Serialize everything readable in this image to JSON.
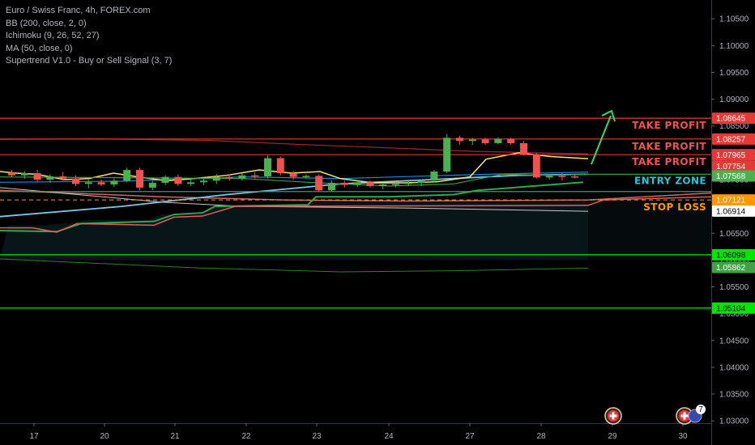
{
  "legend": {
    "symbol": "Euro / Swiss Franc, 4h, FOREX.com",
    "ind1": "BB (200, close, 2, 0)",
    "ind2": "Ichimoku (9, 26, 52, 27)",
    "ind3": "MA (50, close, 0)",
    "ind4": "Supertrend V1.0 - Buy or Sell Signal (3, 7)"
  },
  "price_labels": [
    {
      "price": 1.08645,
      "text": "1.08645",
      "bg": "#e53935",
      "fg": "#ffffff"
    },
    {
      "price": 1.08257,
      "text": "1.08257",
      "bg": "#e53935",
      "fg": "#ffffff"
    },
    {
      "price": 1.07965,
      "text": "1.07965",
      "bg": "#e53935",
      "fg": "#ffffff"
    },
    {
      "price": 1.07754,
      "text": "1.07754",
      "bg": "#e53935",
      "fg": "#ffffff"
    },
    {
      "price": 1.07568,
      "text": "1.07568",
      "bg": "#4caf50",
      "fg": "#ffffff"
    },
    {
      "price": 1.07121,
      "text": "1.07121",
      "bg": "#ff9800",
      "fg": "#ffffff"
    },
    {
      "price": 1.06914,
      "text": "1.06914",
      "bg": "#ffffff",
      "fg": "#000000"
    },
    {
      "price": 1.06098,
      "text": "1.06098",
      "bg": "#00e600",
      "fg": "#000000"
    },
    {
      "price": 1.05862,
      "text": "1.05862",
      "bg": "#43a047",
      "fg": "#ffffff"
    },
    {
      "price": 1.05104,
      "text": "1.05104",
      "bg": "#00e600",
      "fg": "#000000"
    }
  ],
  "annotations": {
    "tp1": "TAKE PROFIT",
    "tp2": "TAKE PROFIT",
    "tp3": "TAKE PROFIT",
    "entry": "ENTRY ZONE",
    "stop": "STOP LOSS",
    "badge_count": "7"
  },
  "colors": {
    "take_profit": "#e53935",
    "entry": "#26a69a",
    "stop": "#ff9800",
    "bull": "#4caf50",
    "bear": "#ef5350",
    "support": "#00e600"
  },
  "chart_data": {
    "type": "candlestick",
    "symbol": "EURCHF",
    "timeframe": "4h",
    "ylim": [
      1.0255,
      1.1085
    ],
    "yticks": [
      1.105,
      1.1,
      1.095,
      1.09,
      1.085,
      1.08,
      1.075,
      1.07,
      1.065,
      1.06,
      1.055,
      1.05,
      1.045,
      1.04,
      1.035,
      1.03,
      1.025
    ],
    "xticks": [
      "17",
      "20",
      "21",
      "22",
      "23",
      "24",
      "27",
      "28",
      "29",
      "30"
    ],
    "horizontal_levels": [
      {
        "price": 1.08645,
        "role": "take profit"
      },
      {
        "price": 1.08257,
        "role": "take profit"
      },
      {
        "price": 1.07965,
        "role": "take profit"
      },
      {
        "price": 1.07121,
        "role": "stop loss"
      },
      {
        "price": 1.06098,
        "role": "support"
      },
      {
        "price": 1.05104,
        "role": "support"
      }
    ],
    "candles": [
      {
        "o": 1.0763,
        "h": 1.0768,
        "l": 1.0755,
        "c": 1.0758
      },
      {
        "o": 1.0758,
        "h": 1.0766,
        "l": 1.0752,
        "c": 1.0762
      },
      {
        "o": 1.0762,
        "h": 1.0768,
        "l": 1.0745,
        "c": 1.075
      },
      {
        "o": 1.075,
        "h": 1.076,
        "l": 1.0744,
        "c": 1.0756
      },
      {
        "o": 1.0756,
        "h": 1.0764,
        "l": 1.0748,
        "c": 1.0752
      },
      {
        "o": 1.0752,
        "h": 1.0758,
        "l": 1.0738,
        "c": 1.0742
      },
      {
        "o": 1.0742,
        "h": 1.075,
        "l": 1.0734,
        "c": 1.0745
      },
      {
        "o": 1.0745,
        "h": 1.075,
        "l": 1.0738,
        "c": 1.0741
      },
      {
        "o": 1.0741,
        "h": 1.0752,
        "l": 1.0736,
        "c": 1.0748
      },
      {
        "o": 1.0748,
        "h": 1.0772,
        "l": 1.0745,
        "c": 1.0768
      },
      {
        "o": 1.0768,
        "h": 1.0772,
        "l": 1.073,
        "c": 1.0735
      },
      {
        "o": 1.0735,
        "h": 1.0748,
        "l": 1.073,
        "c": 1.0744
      },
      {
        "o": 1.0744,
        "h": 1.0758,
        "l": 1.074,
        "c": 1.0755
      },
      {
        "o": 1.0755,
        "h": 1.076,
        "l": 1.0738,
        "c": 1.0742
      },
      {
        "o": 1.0742,
        "h": 1.075,
        "l": 1.0738,
        "c": 1.0745
      },
      {
        "o": 1.0745,
        "h": 1.0752,
        "l": 1.074,
        "c": 1.0748
      },
      {
        "o": 1.0748,
        "h": 1.076,
        "l": 1.0742,
        "c": 1.0755
      },
      {
        "o": 1.0755,
        "h": 1.076,
        "l": 1.0748,
        "c": 1.0752
      },
      {
        "o": 1.0752,
        "h": 1.0762,
        "l": 1.0748,
        "c": 1.0758
      },
      {
        "o": 1.0758,
        "h": 1.0764,
        "l": 1.0752,
        "c": 1.0756
      },
      {
        "o": 1.0756,
        "h": 1.0795,
        "l": 1.0752,
        "c": 1.079
      },
      {
        "o": 1.079,
        "h": 1.0793,
        "l": 1.0758,
        "c": 1.0762
      },
      {
        "o": 1.0762,
        "h": 1.0766,
        "l": 1.075,
        "c": 1.0755
      },
      {
        "o": 1.0755,
        "h": 1.076,
        "l": 1.0752,
        "c": 1.0757
      },
      {
        "o": 1.0757,
        "h": 1.076,
        "l": 1.0728,
        "c": 1.073
      },
      {
        "o": 1.073,
        "h": 1.0748,
        "l": 1.0728,
        "c": 1.0744
      },
      {
        "o": 1.0744,
        "h": 1.0748,
        "l": 1.0735,
        "c": 1.074
      },
      {
        "o": 1.074,
        "h": 1.0748,
        "l": 1.0736,
        "c": 1.0745
      },
      {
        "o": 1.0745,
        "h": 1.0748,
        "l": 1.0735,
        "c": 1.0738
      },
      {
        "o": 1.0738,
        "h": 1.0744,
        "l": 1.0732,
        "c": 1.0741
      },
      {
        "o": 1.0741,
        "h": 1.0746,
        "l": 1.0736,
        "c": 1.0742
      },
      {
        "o": 1.0742,
        "h": 1.0748,
        "l": 1.0738,
        "c": 1.0744
      },
      {
        "o": 1.0744,
        "h": 1.075,
        "l": 1.0738,
        "c": 1.0748
      },
      {
        "o": 1.0748,
        "h": 1.0768,
        "l": 1.0745,
        "c": 1.0765
      },
      {
        "o": 1.0765,
        "h": 1.0835,
        "l": 1.0762,
        "c": 1.0828
      },
      {
        "o": 1.0828,
        "h": 1.0832,
        "l": 1.0815,
        "c": 1.0822
      },
      {
        "o": 1.0822,
        "h": 1.0828,
        "l": 1.0815,
        "c": 1.0825
      },
      {
        "o": 1.0825,
        "h": 1.0828,
        "l": 1.0814,
        "c": 1.0818
      },
      {
        "o": 1.0818,
        "h": 1.0829,
        "l": 1.0816,
        "c": 1.0826
      },
      {
        "o": 1.0826,
        "h": 1.0828,
        "l": 1.0815,
        "c": 1.0818
      },
      {
        "o": 1.0818,
        "h": 1.0822,
        "l": 1.0795,
        "c": 1.0797
      },
      {
        "o": 1.0797,
        "h": 1.08,
        "l": 1.0752,
        "c": 1.0754
      },
      {
        "o": 1.0754,
        "h": 1.076,
        "l": 1.075,
        "c": 1.0757
      },
      {
        "o": 1.0757,
        "h": 1.0762,
        "l": 1.0748,
        "c": 1.0756
      },
      {
        "o": 1.0756,
        "h": 1.076,
        "l": 1.0752,
        "c": 1.0755
      }
    ]
  }
}
